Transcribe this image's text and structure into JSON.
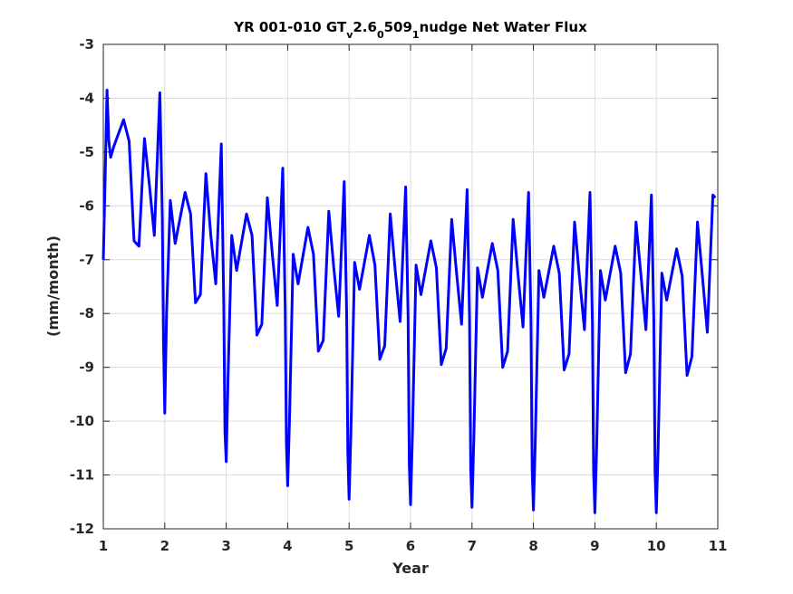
{
  "chart_data": {
    "type": "line",
    "title": {
      "t1": "YR 001-010 GT",
      "s1": "v",
      "t2": "2.6",
      "s2": "0",
      "t3": "509",
      "s3": "1",
      "t4": "nudge Net Water Flux"
    },
    "xlabel": "Year",
    "ylabel": "(mm/month)",
    "xlim": [
      1,
      11
    ],
    "ylim": [
      -12,
      -3
    ],
    "xticks": [
      1,
      2,
      3,
      4,
      5,
      6,
      7,
      8,
      9,
      10,
      11
    ],
    "yticks": [
      -12,
      -11,
      -10,
      -9,
      -8,
      -7,
      -6,
      -5,
      -4,
      -3
    ],
    "grid": true,
    "series": [
      {
        "color": "#0000ff",
        "x": [
          1.0,
          1.03,
          1.06,
          1.09,
          1.12,
          1.17,
          1.33,
          1.42,
          1.5,
          1.58,
          1.67,
          1.75,
          1.83,
          1.92,
          1.96,
          1.98,
          2.0,
          2.03,
          2.09,
          2.17,
          2.33,
          2.42,
          2.5,
          2.58,
          2.67,
          2.75,
          2.83,
          2.92,
          2.96,
          2.98,
          3.0,
          3.03,
          3.09,
          3.17,
          3.33,
          3.42,
          3.5,
          3.58,
          3.67,
          3.75,
          3.83,
          3.92,
          3.96,
          3.98,
          4.0,
          4.03,
          4.09,
          4.17,
          4.33,
          4.42,
          4.5,
          4.58,
          4.67,
          4.75,
          4.83,
          4.92,
          4.96,
          4.98,
          5.0,
          5.03,
          5.09,
          5.17,
          5.33,
          5.42,
          5.5,
          5.58,
          5.67,
          5.75,
          5.83,
          5.92,
          5.96,
          5.98,
          6.0,
          6.03,
          6.09,
          6.17,
          6.33,
          6.42,
          6.5,
          6.58,
          6.67,
          6.75,
          6.83,
          6.92,
          6.96,
          6.98,
          7.0,
          7.03,
          7.09,
          7.17,
          7.33,
          7.42,
          7.5,
          7.58,
          7.67,
          7.75,
          7.83,
          7.92,
          7.96,
          7.98,
          8.0,
          8.03,
          8.09,
          8.17,
          8.33,
          8.42,
          8.5,
          8.58,
          8.67,
          8.75,
          8.83,
          8.92,
          8.96,
          8.98,
          9.0,
          9.03,
          9.09,
          9.17,
          9.33,
          9.42,
          9.5,
          9.58,
          9.67,
          9.75,
          9.83,
          9.92,
          9.96,
          9.98,
          10.0,
          10.03,
          10.09,
          10.17,
          10.33,
          10.42,
          10.5,
          10.58,
          10.67,
          10.75,
          10.83,
          10.92,
          10.96
        ],
        "y": [
          -7.0,
          -5.5,
          -3.85,
          -4.8,
          -5.1,
          -4.9,
          -4.4,
          -4.8,
          -6.65,
          -6.75,
          -4.75,
          -5.6,
          -6.55,
          -3.9,
          -6.2,
          -8.5,
          -9.85,
          -8.0,
          -5.9,
          -6.7,
          -5.75,
          -6.15,
          -7.8,
          -7.65,
          -5.4,
          -6.55,
          -7.45,
          -4.85,
          -7.8,
          -10.2,
          -10.75,
          -9.2,
          -6.55,
          -7.2,
          -6.15,
          -6.55,
          -8.4,
          -8.2,
          -5.85,
          -6.9,
          -7.85,
          -5.3,
          -7.9,
          -10.4,
          -11.2,
          -10.0,
          -6.9,
          -7.45,
          -6.4,
          -6.9,
          -8.7,
          -8.5,
          -6.1,
          -7.15,
          -8.05,
          -5.55,
          -8.0,
          -10.6,
          -11.45,
          -10.2,
          -7.05,
          -7.55,
          -6.55,
          -7.1,
          -8.85,
          -8.6,
          -6.15,
          -7.2,
          -8.15,
          -5.65,
          -8.05,
          -10.8,
          -11.55,
          -10.3,
          -7.1,
          -7.65,
          -6.65,
          -7.15,
          -8.95,
          -8.65,
          -6.25,
          -7.25,
          -8.2,
          -5.7,
          -8.1,
          -10.9,
          -11.6,
          -10.35,
          -7.15,
          -7.7,
          -6.7,
          -7.2,
          -9.0,
          -8.7,
          -6.25,
          -7.3,
          -8.25,
          -5.75,
          -8.15,
          -10.9,
          -11.65,
          -10.4,
          -7.2,
          -7.7,
          -6.75,
          -7.25,
          -9.05,
          -8.75,
          -6.3,
          -7.35,
          -8.3,
          -5.75,
          -8.2,
          -10.95,
          -11.7,
          -10.45,
          -7.2,
          -7.75,
          -6.75,
          -7.25,
          -9.1,
          -8.75,
          -6.3,
          -7.3,
          -8.3,
          -5.8,
          -8.2,
          -10.95,
          -11.7,
          -10.5,
          -7.25,
          -7.75,
          -6.8,
          -7.3,
          -9.15,
          -8.8,
          -6.3,
          -7.3,
          -8.35,
          -5.8,
          -5.85
        ]
      }
    ]
  }
}
